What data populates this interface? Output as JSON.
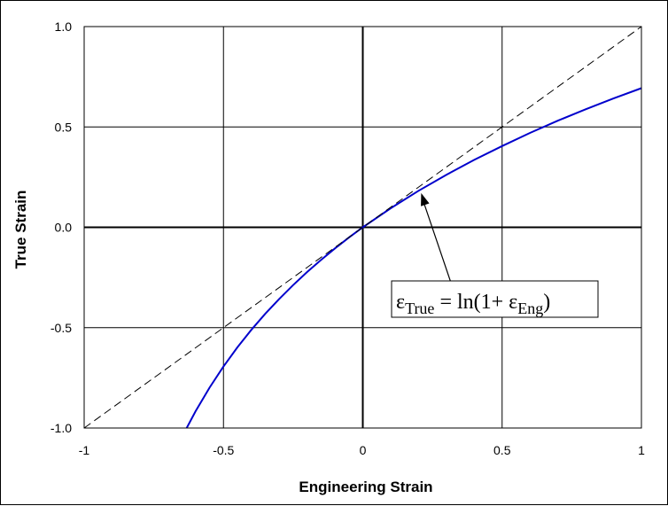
{
  "chart_data": {
    "type": "line",
    "title": "",
    "xlabel": "Engineering Strain",
    "ylabel": "True Strain",
    "xlim": [
      -1,
      1
    ],
    "ylim": [
      -1.0,
      1.0
    ],
    "x_ticks": [
      "-1",
      "-0.5",
      "0",
      "0.5",
      "1"
    ],
    "y_ticks": [
      "-1.0",
      "-0.5",
      "0.0",
      "0.5",
      "1.0"
    ],
    "grid": true,
    "series": [
      {
        "style": "solid",
        "color": "#0000cc",
        "x": [
          -0.632,
          -0.6,
          -0.55,
          -0.5,
          -0.45,
          -0.4,
          -0.35,
          -0.3,
          -0.25,
          -0.2,
          -0.15,
          -0.1,
          -0.05,
          0,
          0.1,
          0.2,
          0.3,
          0.4,
          0.5,
          0.6,
          0.7,
          0.8,
          0.9,
          1.0
        ],
        "y": [
          -1.0,
          -0.916,
          -0.799,
          -0.693,
          -0.598,
          -0.511,
          -0.431,
          -0.357,
          -0.288,
          -0.223,
          -0.163,
          -0.105,
          -0.051,
          0,
          0.095,
          0.182,
          0.262,
          0.336,
          0.405,
          0.47,
          0.531,
          0.588,
          0.642,
          0.693
        ]
      },
      {
        "style": "dashed",
        "color": "#000000",
        "x": [
          -1,
          1
        ],
        "y": [
          -1,
          1
        ]
      }
    ],
    "annotation": {
      "epsilon": "ε",
      "sub_true": "True",
      "equals_ln": " = ln(1+ ",
      "sub_eng": "Eng",
      "close": ")",
      "arrow_target": [
        0.2,
        0.1
      ]
    }
  }
}
